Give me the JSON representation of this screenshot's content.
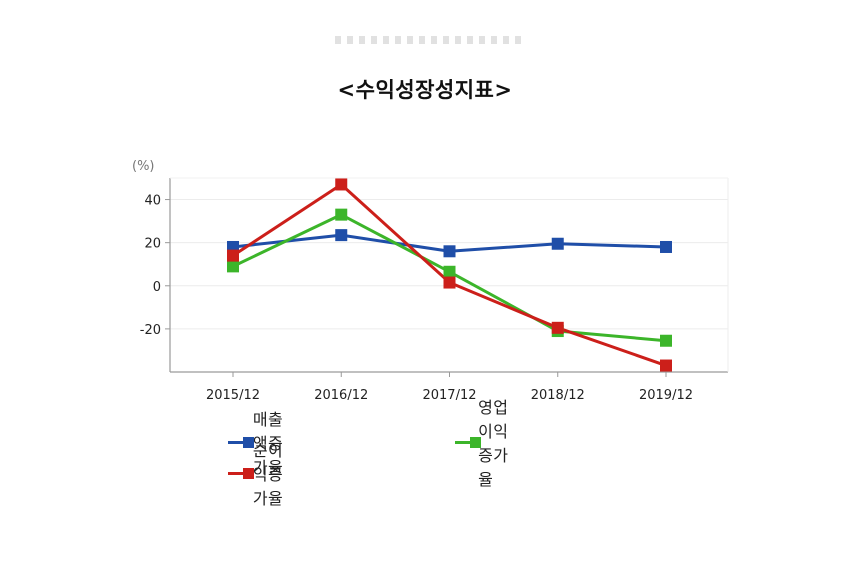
{
  "chart_data": {
    "type": "line",
    "title": "<수익성장성지표>",
    "unit_label": "(%)",
    "categories": [
      "2015/12",
      "2016/12",
      "2017/12",
      "2018/12",
      "2019/12"
    ],
    "y_ticks": [
      "40",
      "20",
      "0",
      "-20"
    ],
    "ylim": [
      -40,
      50
    ],
    "grid": true,
    "legend_position": "bottom",
    "series": [
      {
        "name": "매출액증가율",
        "color": "#1f4ea8",
        "values": [
          18,
          23.5,
          16,
          19.5,
          18
        ]
      },
      {
        "name": "영업이익증가율",
        "color": "#3cb52a",
        "values": [
          9,
          33,
          6.5,
          -21,
          -25.5
        ]
      },
      {
        "name": "순이익증가율",
        "color": "#cc1f1a",
        "values": [
          14,
          47,
          1.5,
          -19.5,
          -37
        ]
      }
    ]
  }
}
